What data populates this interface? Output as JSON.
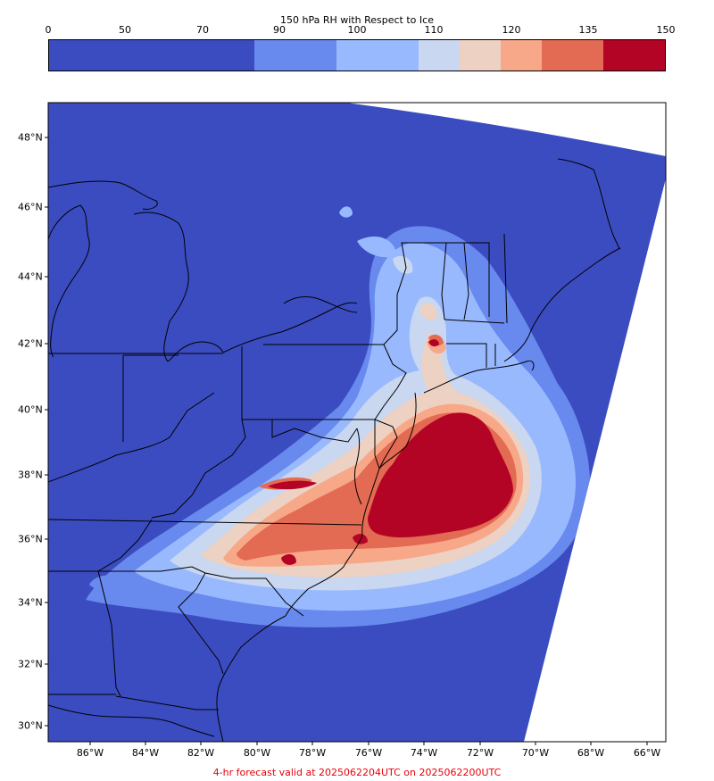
{
  "colorbar": {
    "title": "150 hPa RH with Respect to Ice",
    "ticks": [
      "0",
      "50",
      "70",
      "90",
      "100",
      "110",
      "120",
      "135",
      "150"
    ],
    "bounds": [
      0,
      50,
      70,
      90,
      100,
      110,
      120,
      135,
      150
    ],
    "colors": [
      "#3b4cc0",
      "#6889ee",
      "#99b9ff",
      "#c9d7f0",
      "#edd1c2",
      "#f7a889",
      "#e36a53",
      "#b40426"
    ]
  },
  "map": {
    "lat_labels": [
      "48°N",
      "46°N",
      "44°N",
      "42°N",
      "40°N",
      "38°N",
      "36°N",
      "34°N",
      "32°N",
      "30°N"
    ],
    "lon_labels": [
      "86°W",
      "84°W",
      "82°W",
      "80°W",
      "78°W",
      "76°W",
      "74°W",
      "72°W",
      "70°W",
      "68°W",
      "66°W"
    ],
    "colors": {
      "background": "#3b4cc0",
      "outside": "#ffffff",
      "border": "#000000"
    },
    "features": [
      "coastlines",
      "state-boundaries",
      "rh-contour-fill"
    ]
  },
  "footer": {
    "text": "4-hr forecast valid at 2025062204UTC on 2025062200UTC",
    "color": "#e8000b"
  }
}
